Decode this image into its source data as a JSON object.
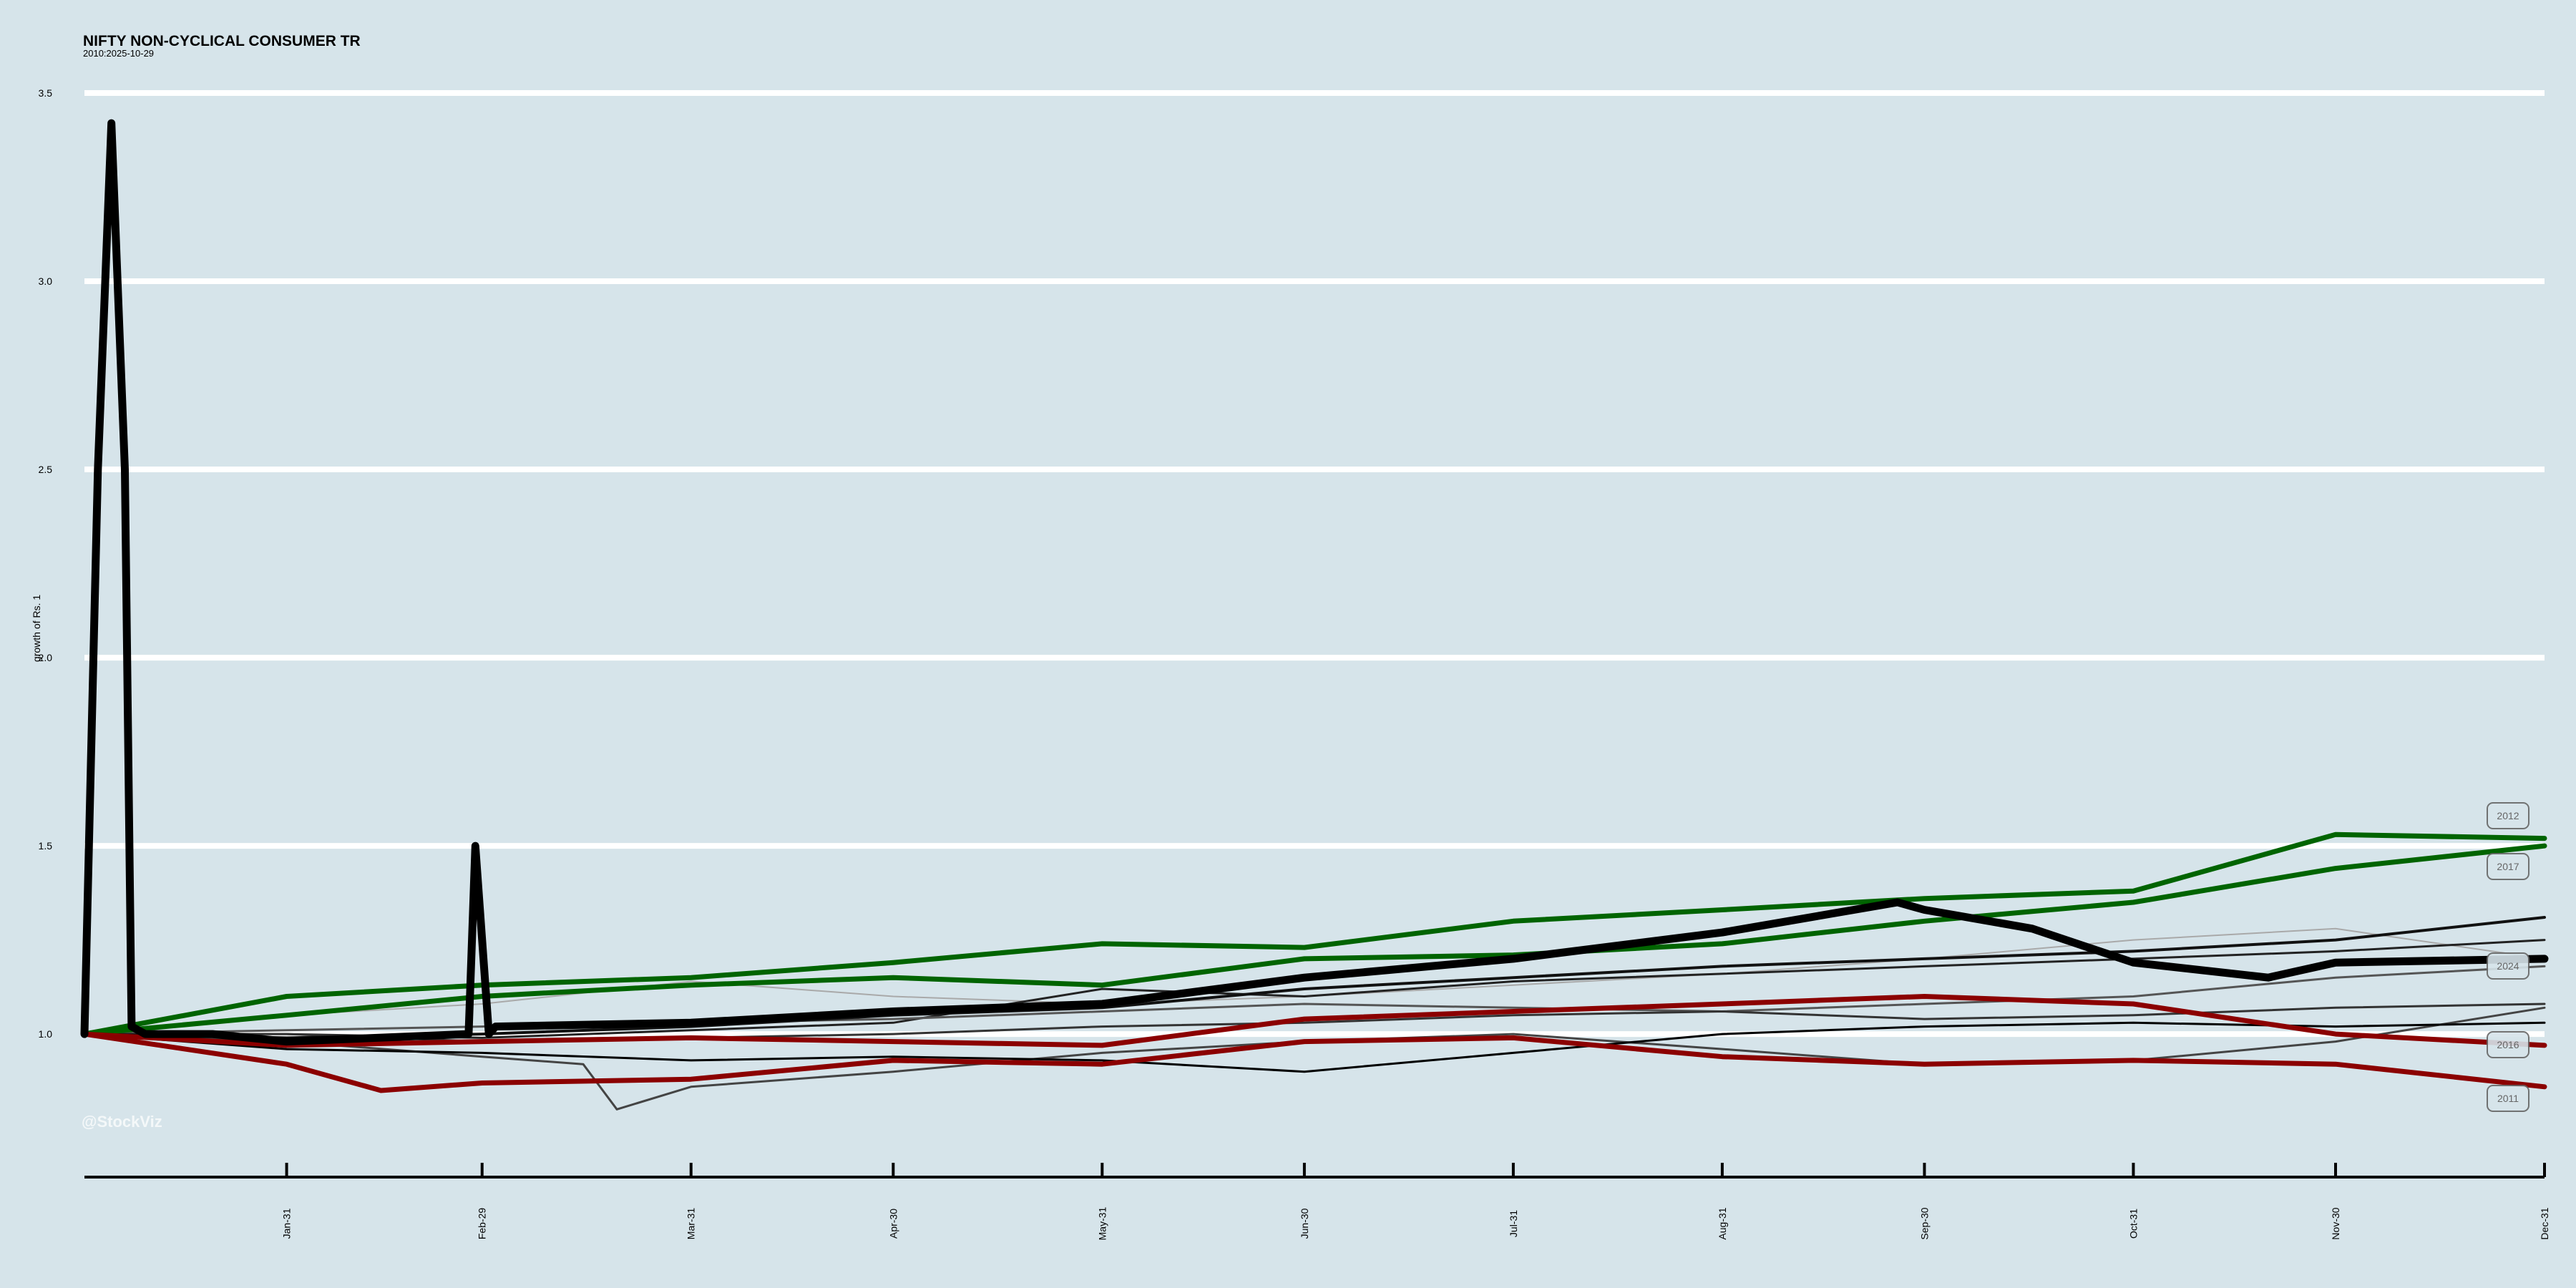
{
  "chart_data": {
    "type": "line",
    "title": "NIFTY NON-CYCLICAL CONSUMER TR",
    "subtitle": "2010:2025-10-29",
    "xlabel": "",
    "ylabel": "growth of Rs. 1",
    "ylim": [
      0.62,
      3.5
    ],
    "y_ticks": [
      1.0,
      1.5,
      2.0,
      2.5,
      3.0,
      3.5
    ],
    "x_tick_labels": [
      "Jan-31",
      "Feb-29",
      "Mar-31",
      "Apr-30",
      "May-31",
      "Jun-30",
      "Jul-31",
      "Aug-31",
      "Sep-30",
      "Oct-31",
      "Nov-30",
      "Dec-31"
    ],
    "x_ticks_day": [
      31,
      60,
      91,
      121,
      152,
      182,
      213,
      244,
      274,
      305,
      335,
      366
    ],
    "x_range_day": [
      1,
      366
    ],
    "grid": "horizontal",
    "watermark": "@StockViz",
    "series": [
      {
        "name": "2012",
        "color": "#006400",
        "width": 7,
        "x": [
          1,
          31,
          60,
          91,
          121,
          152,
          182,
          213,
          244,
          274,
          305,
          335,
          366
        ],
        "y": [
          1.0,
          1.1,
          1.13,
          1.15,
          1.19,
          1.24,
          1.23,
          1.3,
          1.33,
          1.36,
          1.38,
          1.53,
          1.52
        ]
      },
      {
        "name": "2017",
        "color": "#006400",
        "width": 7,
        "x": [
          1,
          31,
          60,
          91,
          121,
          152,
          182,
          213,
          244,
          274,
          305,
          335,
          366
        ],
        "y": [
          1.0,
          1.05,
          1.1,
          1.13,
          1.15,
          1.13,
          1.2,
          1.21,
          1.24,
          1.3,
          1.35,
          1.44,
          1.5
        ]
      },
      {
        "name": "",
        "color": "#000000",
        "width": 11,
        "x": [
          1,
          3,
          5,
          7,
          8,
          10,
          20,
          31,
          58,
          59,
          61,
          62,
          91,
          121,
          152,
          182,
          213,
          244,
          270,
          274,
          290,
          305,
          325,
          335,
          366
        ],
        "y": [
          1.0,
          2.5,
          3.42,
          2.5,
          1.02,
          1.0,
          1.0,
          0.98,
          1.0,
          1.5,
          1.0,
          1.02,
          1.03,
          1.06,
          1.08,
          1.15,
          1.2,
          1.27,
          1.35,
          1.33,
          1.28,
          1.19,
          1.15,
          1.19,
          1.2
        ]
      },
      {
        "name": "",
        "color": "#111111",
        "width": 4,
        "x": [
          1,
          31,
          60,
          91,
          121,
          152,
          182,
          213,
          244,
          274,
          305,
          335,
          366
        ],
        "y": [
          1.0,
          0.99,
          1.0,
          1.02,
          1.05,
          1.07,
          1.12,
          1.15,
          1.18,
          1.2,
          1.22,
          1.25,
          1.31
        ]
      },
      {
        "name": "",
        "color": "#222222",
        "width": 3,
        "x": [
          1,
          31,
          60,
          91,
          121,
          152,
          182,
          213,
          244,
          274,
          305,
          335,
          366
        ],
        "y": [
          1.0,
          1.0,
          0.99,
          1.01,
          1.03,
          1.12,
          1.1,
          1.14,
          1.16,
          1.18,
          1.2,
          1.22,
          1.25
        ]
      },
      {
        "name": "2024",
        "color": "#555555",
        "width": 3,
        "x": [
          1,
          31,
          60,
          91,
          121,
          152,
          182,
          213,
          244,
          274,
          305,
          335,
          366
        ],
        "y": [
          1.0,
          1.01,
          1.02,
          1.03,
          1.04,
          1.06,
          1.08,
          1.07,
          1.06,
          1.08,
          1.1,
          1.15,
          1.18
        ]
      },
      {
        "name": "",
        "color": "#a9a9a9",
        "width": 2,
        "x": [
          1,
          31,
          60,
          91,
          121,
          152,
          182,
          213,
          244,
          274,
          305,
          335,
          366
        ],
        "y": [
          1.0,
          1.05,
          1.08,
          1.14,
          1.1,
          1.08,
          1.1,
          1.13,
          1.16,
          1.2,
          1.25,
          1.28,
          1.2
        ]
      },
      {
        "name": "",
        "color": "#333333",
        "width": 3,
        "x": [
          1,
          31,
          60,
          91,
          121,
          152,
          182,
          213,
          244,
          274,
          305,
          335,
          366
        ],
        "y": [
          1.0,
          1.0,
          0.98,
          0.99,
          1.0,
          1.02,
          1.03,
          1.05,
          1.06,
          1.04,
          1.05,
          1.07,
          1.08
        ]
      },
      {
        "name": "",
        "color": "#444444",
        "width": 3,
        "x": [
          1,
          31,
          60,
          75,
          80,
          91,
          121,
          152,
          182,
          213,
          244,
          274,
          305,
          335,
          366
        ],
        "y": [
          1.0,
          0.98,
          0.94,
          0.92,
          0.8,
          0.86,
          0.9,
          0.95,
          0.98,
          1.0,
          0.96,
          0.92,
          0.93,
          0.98,
          1.07
        ]
      },
      {
        "name": "2016",
        "color": "#000000",
        "width": 3,
        "x": [
          1,
          31,
          60,
          91,
          121,
          152,
          182,
          213,
          244,
          274,
          305,
          335,
          366
        ],
        "y": [
          1.0,
          0.96,
          0.95,
          0.93,
          0.94,
          0.93,
          0.9,
          0.95,
          1.0,
          1.02,
          1.03,
          1.02,
          1.03
        ]
      },
      {
        "name": "",
        "color": "#8b0000",
        "width": 7,
        "x": [
          1,
          31,
          60,
          91,
          121,
          152,
          182,
          213,
          244,
          274,
          305,
          335,
          366
        ],
        "y": [
          1.0,
          0.97,
          0.98,
          0.99,
          0.98,
          0.97,
          1.04,
          1.06,
          1.08,
          1.1,
          1.08,
          1.0,
          0.97
        ]
      },
      {
        "name": "2011",
        "color": "#8b0000",
        "width": 7,
        "x": [
          1,
          31,
          45,
          60,
          91,
          121,
          152,
          182,
          213,
          244,
          274,
          305,
          335,
          366
        ],
        "y": [
          1.0,
          0.92,
          0.85,
          0.87,
          0.88,
          0.93,
          0.92,
          0.98,
          0.99,
          0.94,
          0.92,
          0.93,
          0.92,
          0.86
        ]
      }
    ]
  }
}
